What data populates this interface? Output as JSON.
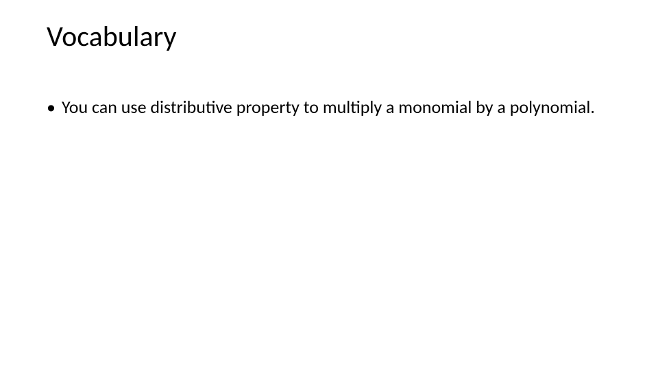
{
  "slide": {
    "title": "Vocabulary",
    "bullets": [
      {
        "marker": "•",
        "text": "You can use distributive property to multiply a monomial by a polynomial."
      }
    ]
  },
  "style": {
    "background_color": "#ffffff",
    "text_color": "#000000",
    "title_fontsize": 42,
    "body_fontsize": 26,
    "font_family": "Calibri",
    "title_font_family": "Calibri Light"
  }
}
